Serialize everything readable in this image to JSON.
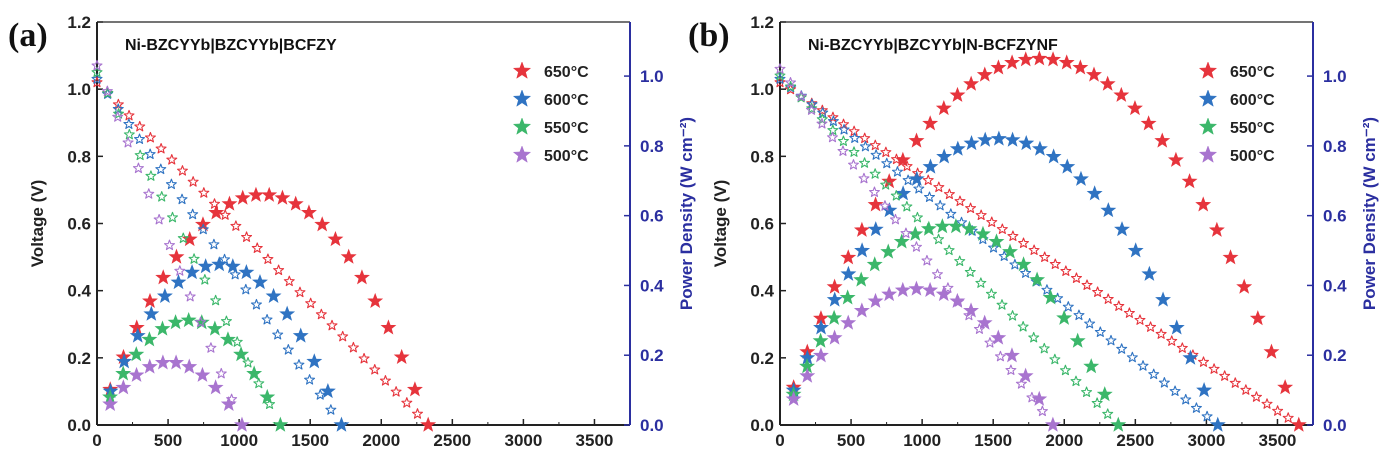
{
  "chart_data": [
    {
      "panel_label": "(a)",
      "type": "line",
      "title": "Ni-BZCYYb|BZCYYb|BCFZY",
      "xlabel": "",
      "ylabel": "Voltage (V)",
      "y2label": "Power Density (W cm⁻²)",
      "xlim": [
        0,
        3750
      ],
      "ylim": [
        0,
        1.2
      ],
      "y2lim": [
        0,
        1.155
      ],
      "xticks": [
        0,
        500,
        1000,
        1500,
        2000,
        2500,
        3000,
        3500
      ],
      "yticks": [
        0.0,
        0.2,
        0.4,
        0.6,
        0.8,
        1.0,
        1.2
      ],
      "y2ticks": [
        0.0,
        0.2,
        0.4,
        0.6,
        0.8,
        1.0
      ],
      "legend_position": "top-right",
      "series": [
        {
          "name": "650°C",
          "color": "#e6343c",
          "ocv": 1.02,
          "imax": 2330,
          "pmax": 0.66
        },
        {
          "name": "600°C",
          "color": "#2f73c2",
          "ocv": 1.03,
          "imax": 1720,
          "pmax": 0.46
        },
        {
          "name": "550°C",
          "color": "#3bb76a",
          "ocv": 1.05,
          "imax": 1290,
          "pmax": 0.3
        },
        {
          "name": "500°C",
          "color": "#a874cf",
          "ocv": 1.07,
          "imax": 1020,
          "pmax": 0.18
        }
      ]
    },
    {
      "panel_label": "(b)",
      "type": "line",
      "title": "Ni-BZCYYb|BZCYYb|N-BCFZYNF",
      "xlabel": "",
      "ylabel": "Voltage (V)",
      "y2label": "Power Density (W cm⁻²)",
      "xlim": [
        0,
        3750
      ],
      "ylim": [
        0,
        1.2
      ],
      "y2lim": [
        0,
        1.155
      ],
      "xticks": [
        0,
        500,
        1000,
        1500,
        2000,
        2500,
        3000,
        3500
      ],
      "yticks": [
        0.0,
        0.2,
        0.4,
        0.6,
        0.8,
        1.0,
        1.2
      ],
      "y2ticks": [
        0.0,
        0.2,
        0.4,
        0.6,
        0.8,
        1.0
      ],
      "legend_position": "top-right",
      "series": [
        {
          "name": "650°C",
          "color": "#e6343c",
          "ocv": 1.02,
          "imax": 3650,
          "pmax": 1.05
        },
        {
          "name": "600°C",
          "color": "#2f73c2",
          "ocv": 1.03,
          "imax": 3080,
          "pmax": 0.82
        },
        {
          "name": "550°C",
          "color": "#3bb76a",
          "ocv": 1.04,
          "imax": 2380,
          "pmax": 0.57
        },
        {
          "name": "500°C",
          "color": "#a874cf",
          "ocv": 1.06,
          "imax": 1920,
          "pmax": 0.39
        }
      ]
    }
  ]
}
